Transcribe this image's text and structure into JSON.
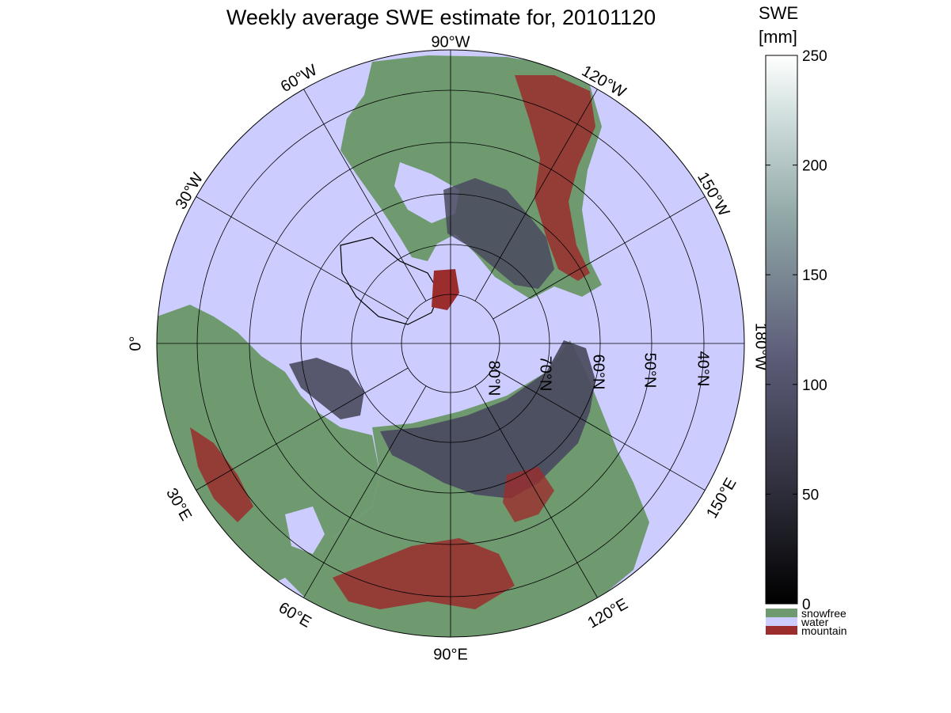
{
  "title": "Weekly average SWE estimate for, 20101120",
  "map": {
    "projection": "north-polar-stereographic",
    "meridian_labels": [
      {
        "lon": 0,
        "label": "0°"
      },
      {
        "lon": -30,
        "label": "30°W"
      },
      {
        "lon": -60,
        "label": "60°W"
      },
      {
        "lon": -90,
        "label": "90°W"
      },
      {
        "lon": -120,
        "label": "120°W"
      },
      {
        "lon": -150,
        "label": "150°W"
      },
      {
        "lon": 180,
        "label": "180°W"
      },
      {
        "lon": 30,
        "label": "30°E"
      },
      {
        "lon": 60,
        "label": "60°E"
      },
      {
        "lon": 90,
        "label": "90°E"
      },
      {
        "lon": 120,
        "label": "120°E"
      },
      {
        "lon": 150,
        "label": "150°E"
      }
    ],
    "parallel_labels": [
      "80°N",
      "70°N",
      "60°N",
      "50°N",
      "40°N"
    ],
    "colors": {
      "water": "#ccccff",
      "snowfree": "#6f9a70",
      "mountain": "#9b2d2d",
      "snow": "#4a4a5e"
    }
  },
  "colorbar": {
    "title_line1": "SWE",
    "title_line2": "[mm]",
    "range": [
      0,
      250
    ],
    "ticks": [
      "0",
      "50",
      "100",
      "150",
      "200",
      "250"
    ],
    "categories": [
      {
        "label": "snowfree",
        "color": "#6f9a70"
      },
      {
        "label": "water",
        "color": "#ccccff"
      },
      {
        "label": "mountain",
        "color": "#9b2d2d"
      }
    ]
  }
}
